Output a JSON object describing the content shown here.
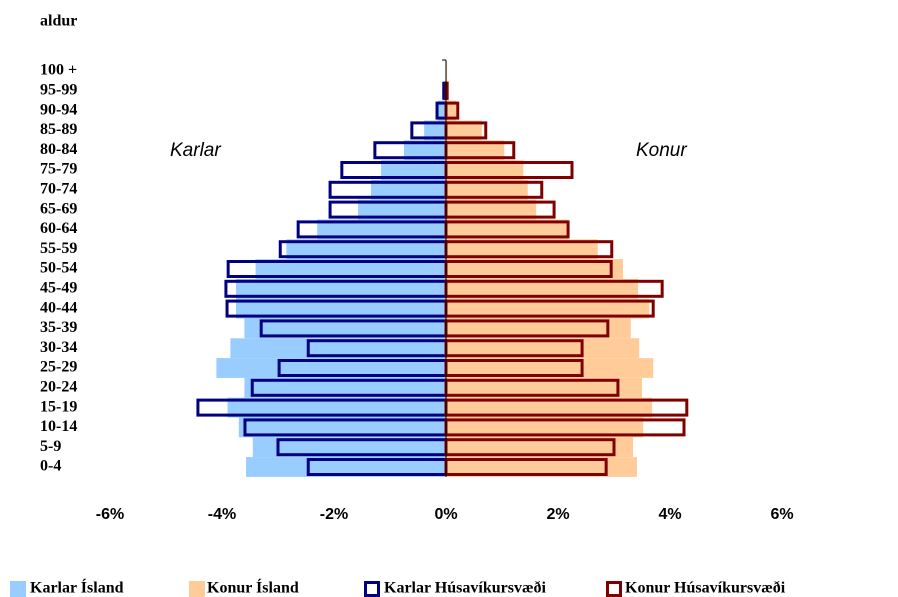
{
  "chart_data": {
    "type": "population-pyramid",
    "y_axis_label": "aldur",
    "annotations": [
      "Karlar",
      "Konur"
    ],
    "categories": [
      "0-4",
      "5-9",
      "10-14",
      "15-19",
      "20-24",
      "25-29",
      "30-34",
      "35-39",
      "40-44",
      "45-49",
      "50-54",
      "55-59",
      "60-64",
      "65-69",
      "70-74",
      "75-79",
      "80-84",
      "85-89",
      "90-94",
      "95-99",
      "100 +"
    ],
    "series": [
      {
        "name": "Karlar Ísland",
        "color": "#99ccff",
        "style": "filled",
        "values": [
          -3.57,
          -3.45,
          -3.7,
          -3.9,
          -3.6,
          -4.1,
          -3.85,
          -3.6,
          -3.75,
          -3.75,
          -3.4,
          -2.85,
          -2.3,
          -1.57,
          -1.34,
          -1.16,
          -0.75,
          -0.39,
          -0.14,
          -0.04,
          -0.01
        ]
      },
      {
        "name": "Konur Ísland",
        "color": "#ffcc99",
        "style": "filled",
        "values": [
          3.41,
          3.34,
          3.52,
          3.68,
          3.5,
          3.7,
          3.45,
          3.3,
          3.63,
          3.43,
          3.16,
          2.71,
          2.18,
          1.61,
          1.46,
          1.38,
          1.04,
          0.64,
          0.18,
          0.05,
          0.02
        ]
      },
      {
        "name": "Karlar Húsavíkursvæði",
        "color": "#000080",
        "style": "outline",
        "values": [
          -2.46,
          -3.0,
          -3.59,
          -4.43,
          -3.46,
          -2.98,
          -2.46,
          -3.3,
          -3.91,
          -3.93,
          -3.89,
          -2.96,
          -2.64,
          -2.07,
          -2.07,
          -1.86,
          -1.27,
          -0.61,
          -0.16,
          -0.04,
          0
        ]
      },
      {
        "name": "Konur Húsavíkursvæði",
        "color": "#800000",
        "style": "outline",
        "values": [
          2.86,
          3.0,
          4.25,
          4.3,
          3.07,
          2.43,
          2.43,
          2.89,
          3.7,
          3.86,
          2.95,
          2.96,
          2.18,
          1.93,
          1.71,
          2.25,
          1.21,
          0.71,
          0.21,
          0.02,
          0
        ]
      }
    ],
    "xlim": [
      -6,
      6
    ],
    "xticks": [
      {
        "value": -6,
        "label": "-6%"
      },
      {
        "value": -4,
        "label": "-4%"
      },
      {
        "value": -2,
        "label": "-2%"
      },
      {
        "value": 0,
        "label": "0%"
      },
      {
        "value": 2,
        "label": "2%"
      },
      {
        "value": 4,
        "label": "4%"
      },
      {
        "value": 6,
        "label": "6%"
      }
    ]
  }
}
